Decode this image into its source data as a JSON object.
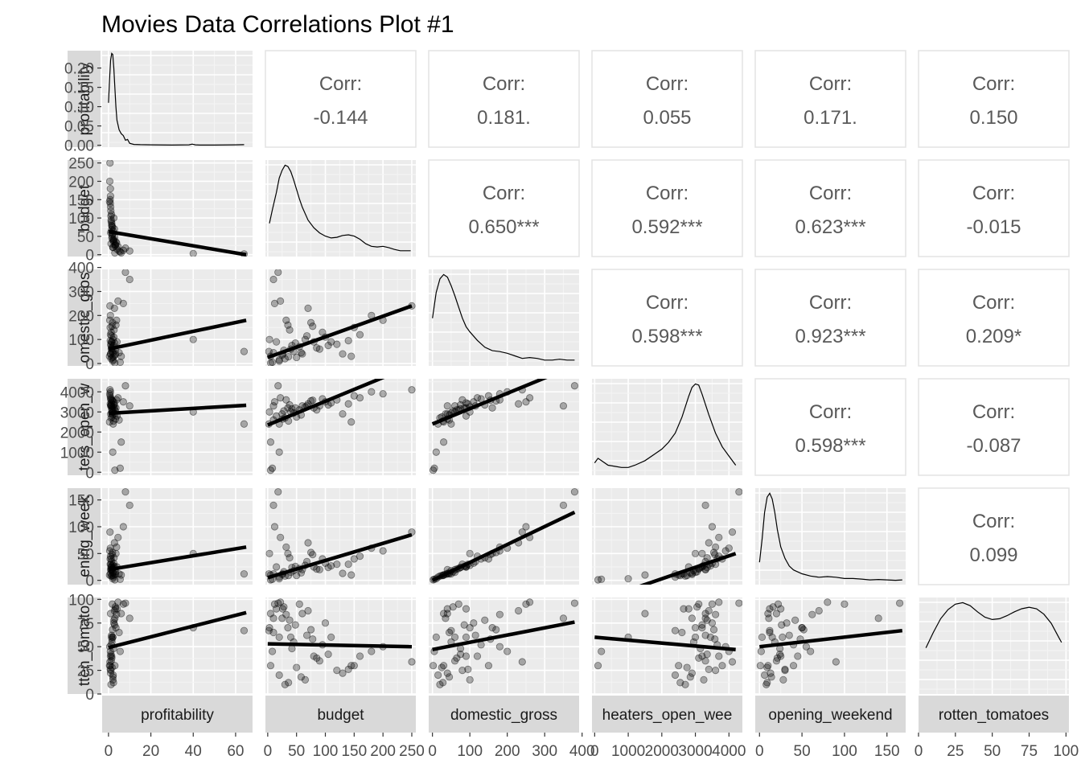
{
  "title": "Movies Data Correlations Plot #1",
  "colors": {
    "panel_bg": "#ebebeb",
    "grid_major": "#ffffff",
    "grid_minor": "#f4f4f4",
    "strip_bg": "#d9d9d9",
    "point_fill": "#000000",
    "line": "#000000",
    "corr_text": "#595959",
    "corr_border": "#e3e3e3"
  },
  "chart_data": {
    "type": "scatter",
    "variables": [
      "profitability",
      "budget",
      "domestic_gross",
      "theaters_open_week",
      "opening_weekend",
      "rotten_tomatoes"
    ],
    "strip_labels": [
      "profitability",
      "budget",
      "domestic_gross",
      "heaters_open_wee",
      "opening_weekend",
      "rotten_tomatoes"
    ],
    "row_labels": [
      "profitability",
      "budget",
      "omestic_gros",
      "ters_open_w",
      "ening_week",
      "tten_tomato"
    ],
    "x_ranges": [
      [
        -3,
        68
      ],
      [
        -4,
        257
      ],
      [
        -10,
        392
      ],
      [
        -80,
        4400
      ],
      [
        -5,
        172
      ],
      [
        0,
        102
      ]
    ],
    "y_ranges": [
      [
        -0.005,
        0.245
      ],
      [
        -5,
        258
      ],
      [
        -10,
        392
      ],
      [
        -150,
        4650
      ],
      [
        -8,
        172
      ],
      [
        0,
        102
      ]
    ],
    "x_ticks": [
      {
        "values": [
          0,
          20,
          40,
          60
        ],
        "labels": [
          "0",
          "20",
          "40",
          "60"
        ]
      },
      {
        "values": [
          0,
          50,
          100,
          150,
          200,
          250
        ],
        "labels": [
          "0",
          "50",
          "100",
          "150",
          "200",
          "250"
        ]
      },
      {
        "values": [
          0,
          100,
          200,
          300,
          400
        ],
        "labels": [
          "0",
          "100",
          "200",
          "300",
          "400"
        ]
      },
      {
        "values": [
          0,
          1000,
          2000,
          3000,
          4000
        ],
        "labels": [
          "0",
          "1000",
          "2000",
          "3000",
          "4000"
        ]
      },
      {
        "values": [
          0,
          50,
          100,
          150
        ],
        "labels": [
          "0",
          "50",
          "100",
          "150"
        ]
      },
      {
        "values": [
          0,
          25,
          50,
          75,
          100
        ],
        "labels": [
          "0",
          "25",
          "50",
          "75",
          "100"
        ]
      }
    ],
    "y_ticks": [
      {
        "values": [
          0,
          0.05,
          0.1,
          0.15,
          0.2
        ],
        "labels": [
          "0.00",
          "0.05",
          "0.10",
          "0.15",
          "0.20"
        ]
      },
      {
        "values": [
          0,
          50,
          100,
          150,
          200,
          250
        ],
        "labels": [
          "0",
          "50",
          "100",
          "150",
          "200",
          "250"
        ]
      },
      {
        "values": [
          0,
          100,
          200,
          300,
          400
        ],
        "labels": [
          "0",
          "100",
          "200",
          "300",
          "400"
        ]
      },
      {
        "values": [
          0,
          1000,
          2000,
          3000,
          4000
        ],
        "labels": [
          "0",
          "1000",
          "2000",
          "3000",
          "4000"
        ]
      },
      {
        "values": [
          0,
          50,
          100,
          150
        ],
        "labels": [
          "0",
          "50",
          "100",
          "150"
        ]
      },
      {
        "values": [
          0,
          25,
          50,
          75,
          100
        ],
        "labels": [
          "0",
          "25",
          "50",
          "75",
          "100"
        ]
      }
    ],
    "correlations": [
      {
        "row": 0,
        "col": 1,
        "label": "Corr:",
        "value": "-0.144"
      },
      {
        "row": 0,
        "col": 2,
        "label": "Corr:",
        "value": "0.181."
      },
      {
        "row": 0,
        "col": 3,
        "label": "Corr:",
        "value": "0.055"
      },
      {
        "row": 0,
        "col": 4,
        "label": "Corr:",
        "value": "0.171."
      },
      {
        "row": 0,
        "col": 5,
        "label": "Corr:",
        "value": "0.150"
      },
      {
        "row": 1,
        "col": 2,
        "label": "Corr:",
        "value": "0.650***"
      },
      {
        "row": 1,
        "col": 3,
        "label": "Corr:",
        "value": "0.592***"
      },
      {
        "row": 1,
        "col": 4,
        "label": "Corr:",
        "value": "0.623***"
      },
      {
        "row": 1,
        "col": 5,
        "label": "Corr:",
        "value": "-0.015"
      },
      {
        "row": 2,
        "col": 3,
        "label": "Corr:",
        "value": "0.598***"
      },
      {
        "row": 2,
        "col": 4,
        "label": "Corr:",
        "value": "0.923***"
      },
      {
        "row": 2,
        "col": 5,
        "label": "Corr:",
        "value": "0.209*"
      },
      {
        "row": 3,
        "col": 4,
        "label": "Corr:",
        "value": "0.598***"
      },
      {
        "row": 3,
        "col": 5,
        "label": "Corr:",
        "value": "-0.087"
      },
      {
        "row": 4,
        "col": 5,
        "label": "Corr:",
        "value": "0.099"
      }
    ],
    "densities": [
      {
        "var": 0,
        "x": [
          0,
          0.5,
          1,
          1.5,
          2,
          2.5,
          3,
          3.5,
          4,
          5,
          6,
          7,
          8,
          9,
          10,
          12,
          15,
          20,
          30,
          38,
          39.5,
          41,
          43,
          50,
          60,
          64
        ],
        "y": [
          0.11,
          0.17,
          0.22,
          0.238,
          0.235,
          0.2,
          0.15,
          0.1,
          0.065,
          0.04,
          0.03,
          0.025,
          0.013,
          0.015,
          0.005,
          0.002,
          0.0015,
          0.001,
          0.0005,
          0.001,
          0.003,
          0.001,
          0.0005,
          0.0005,
          0.001,
          0.0015
        ]
      },
      {
        "var": 1,
        "x": [
          3,
          8,
          15,
          20,
          25,
          30,
          35,
          40,
          45,
          50,
          55,
          60,
          70,
          80,
          90,
          100,
          110,
          120,
          130,
          140,
          150,
          160,
          170,
          180,
          190,
          200,
          210,
          220,
          230,
          240,
          248
        ],
        "y": [
          0.0047,
          0.0068,
          0.0095,
          0.0118,
          0.013,
          0.0138,
          0.0136,
          0.0128,
          0.0115,
          0.01,
          0.0085,
          0.0072,
          0.0052,
          0.004,
          0.0032,
          0.0027,
          0.0024,
          0.0025,
          0.0028,
          0.0029,
          0.0027,
          0.0022,
          0.0015,
          0.0011,
          0.001,
          0.0011,
          0.0009,
          0.0006,
          0.0004,
          0.0004,
          0.0004
        ]
      },
      {
        "var": 2,
        "x": [
          0,
          10,
          20,
          30,
          40,
          50,
          60,
          70,
          80,
          90,
          100,
          120,
          140,
          160,
          180,
          200,
          220,
          240,
          260,
          280,
          300,
          320,
          340,
          360,
          380
        ],
        "y": [
          0.0052,
          0.0082,
          0.0098,
          0.0103,
          0.01,
          0.009,
          0.0078,
          0.0065,
          0.0052,
          0.0042,
          0.0036,
          0.0026,
          0.0018,
          0.0014,
          0.0013,
          0.0011,
          0.0008,
          0.0005,
          0.0006,
          0.0005,
          0.0003,
          0.0003,
          0.0004,
          0.0003,
          0.0003
        ]
      },
      {
        "var": 3,
        "x": [
          0,
          100,
          200,
          400,
          600,
          800,
          1000,
          1200,
          1500,
          1800,
          2000,
          2200,
          2400,
          2600,
          2800,
          2900,
          3000,
          3100,
          3200,
          3400,
          3600,
          3800,
          4000,
          4200
        ],
        "y": [
          4e-05,
          6e-05,
          5e-05,
          3e-05,
          2.5e-05,
          2e-05,
          2e-05,
          3e-05,
          5e-05,
          8e-05,
          0.0001,
          0.00013,
          0.00017,
          0.00024,
          0.00033,
          0.00037,
          0.000385,
          0.00038,
          0.00034,
          0.00025,
          0.00017,
          0.00011,
          7e-05,
          3e-05
        ]
      },
      {
        "var": 4,
        "x": [
          0,
          3,
          6,
          9,
          12,
          15,
          18,
          21,
          25,
          30,
          35,
          40,
          50,
          60,
          70,
          80,
          90,
          100,
          110,
          120,
          130,
          140,
          150,
          160,
          168
        ],
        "y": [
          0.01,
          0.022,
          0.036,
          0.044,
          0.046,
          0.043,
          0.036,
          0.027,
          0.018,
          0.012,
          0.008,
          0.006,
          0.004,
          0.0028,
          0.0022,
          0.0025,
          0.0022,
          0.0015,
          0.0015,
          0.0012,
          0.0008,
          0.001,
          0.0008,
          0.0006,
          0.0008
        ]
      },
      {
        "var": 5,
        "x": [
          5,
          10,
          15,
          20,
          25,
          30,
          35,
          40,
          45,
          50,
          55,
          60,
          65,
          70,
          75,
          80,
          85,
          90,
          95,
          97
        ],
        "y": [
          0.0056,
          0.0076,
          0.0094,
          0.0106,
          0.0113,
          0.0115,
          0.0111,
          0.0103,
          0.0096,
          0.0093,
          0.0094,
          0.0098,
          0.0103,
          0.0107,
          0.0109,
          0.0107,
          0.01,
          0.0088,
          0.007,
          0.0063
        ]
      }
    ],
    "fits": [
      {
        "row": 1,
        "col": 0,
        "x": [
          0,
          65
        ],
        "y": [
          63,
          0
        ]
      },
      {
        "row": 2,
        "col": 0,
        "x": [
          0,
          65
        ],
        "y": [
          60,
          180
        ]
      },
      {
        "row": 2,
        "col": 1,
        "x": [
          0,
          250
        ],
        "y": [
          25,
          240
        ]
      },
      {
        "row": 3,
        "col": 0,
        "x": [
          0,
          65
        ],
        "y": [
          2930,
          3330
        ]
      },
      {
        "row": 3,
        "col": 1,
        "x": [
          0,
          250
        ],
        "y": [
          2350,
          5300
        ]
      },
      {
        "row": 3,
        "col": 2,
        "x": [
          0,
          380
        ],
        "y": [
          2400,
          5300
        ]
      },
      {
        "row": 4,
        "col": 0,
        "x": [
          0,
          65
        ],
        "y": [
          20,
          62
        ]
      },
      {
        "row": 4,
        "col": 1,
        "x": [
          0,
          250
        ],
        "y": [
          5,
          85
        ]
      },
      {
        "row": 4,
        "col": 2,
        "x": [
          0,
          380
        ],
        "y": [
          0,
          127
        ]
      },
      {
        "row": 4,
        "col": 3,
        "x": [
          0,
          4200
        ],
        "y": [
          -40,
          50
        ]
      },
      {
        "row": 5,
        "col": 0,
        "x": [
          0,
          65
        ],
        "y": [
          49,
          86
        ]
      },
      {
        "row": 5,
        "col": 1,
        "x": [
          0,
          250
        ],
        "y": [
          53,
          50
        ]
      },
      {
        "row": 5,
        "col": 2,
        "x": [
          0,
          380
        ],
        "y": [
          47,
          76
        ]
      },
      {
        "row": 5,
        "col": 3,
        "x": [
          0,
          4200
        ],
        "y": [
          60,
          47
        ]
      },
      {
        "row": 5,
        "col": 4,
        "x": [
          0,
          168
        ],
        "y": [
          50,
          67
        ]
      }
    ],
    "observations": [
      [
        1,
        60,
        40,
        3300,
        20,
        85
      ],
      [
        1.5,
        80,
        90,
        3200,
        25,
        40
      ],
      [
        0.8,
        150,
        150,
        3800,
        40,
        30
      ],
      [
        2,
        40,
        60,
        3000,
        15,
        60
      ],
      [
        2.5,
        100,
        110,
        3500,
        32,
        75
      ],
      [
        1.2,
        30,
        20,
        2700,
        8,
        10
      ],
      [
        3,
        25,
        35,
        2900,
        11,
        80
      ],
      [
        0.6,
        200,
        180,
        3900,
        55,
        50
      ],
      [
        1.8,
        55,
        70,
        3100,
        22,
        95
      ],
      [
        2.2,
        20,
        15,
        2400,
        6,
        20
      ],
      [
        1.1,
        120,
        80,
        3600,
        30,
        25
      ],
      [
        4,
        15,
        90,
        2800,
        25,
        90
      ],
      [
        3.5,
        35,
        160,
        3200,
        50,
        70
      ],
      [
        0.9,
        180,
        200,
        4000,
        60,
        45
      ],
      [
        1.6,
        45,
        50,
        2950,
        18,
        55
      ],
      [
        2.8,
        70,
        230,
        3400,
        70,
        88
      ],
      [
        1.3,
        90,
        60,
        3300,
        20,
        35
      ],
      [
        0.7,
        250,
        240,
        4100,
        90,
        34
      ],
      [
        5,
        10,
        45,
        2600,
        12,
        65
      ],
      [
        6,
        5,
        30,
        1500,
        10,
        85
      ],
      [
        2.1,
        65,
        100,
        3250,
        28,
        15
      ],
      [
        1.4,
        110,
        90,
        3450,
        27,
        60
      ],
      [
        0.95,
        160,
        120,
        3700,
        45,
        40
      ],
      [
        3.2,
        28,
        55,
        3050,
        16,
        92
      ],
      [
        1.7,
        50,
        25,
        2750,
        9,
        28
      ],
      [
        2.6,
        38,
        140,
        3350,
        42,
        78
      ],
      [
        1.9,
        75,
        170,
        3550,
        52,
        68
      ],
      [
        4.5,
        22,
        260,
        3700,
        80,
        97
      ],
      [
        7,
        12,
        250,
        3500,
        100,
        95
      ],
      [
        8,
        18,
        380,
        4300,
        165,
        96
      ],
      [
        10,
        10,
        350,
        3300,
        140,
        80
      ],
      [
        40,
        3,
        100,
        3000,
        50,
        70
      ],
      [
        64,
        2,
        50,
        2400,
        12,
        67
      ],
      [
        1.0,
        130,
        40,
        2900,
        13,
        22
      ],
      [
        2.4,
        42,
        75,
        3150,
        24,
        48
      ],
      [
        0.5,
        145,
        30,
        2500,
        10,
        30
      ],
      [
        3.8,
        32,
        180,
        3600,
        62,
        84
      ],
      [
        1.25,
        95,
        130,
        3650,
        40,
        52
      ],
      [
        2.9,
        48,
        85,
        3200,
        26,
        73
      ],
      [
        1.55,
        85,
        65,
        3100,
        21,
        38
      ],
      [
        5.5,
        8,
        5,
        200,
        2,
        45
      ],
      [
        3,
        5,
        2,
        100,
        1,
        30
      ],
      [
        2,
        20,
        10,
        1000,
        3,
        60
      ],
      [
        1.45,
        68,
        115,
        3300,
        35,
        62
      ],
      [
        2.05,
        58,
        45,
        2850,
        14,
        18
      ],
      [
        0.85,
        140,
        95,
        3400,
        30,
        26
      ],
      [
        3.3,
        26,
        40,
        2650,
        12,
        90
      ],
      [
        1.65,
        78,
        155,
        3580,
        48,
        58
      ],
      [
        2.35,
        36,
        28,
        2550,
        9,
        12
      ],
      [
        1.15,
        105,
        75,
        3350,
        24,
        42
      ]
    ]
  }
}
